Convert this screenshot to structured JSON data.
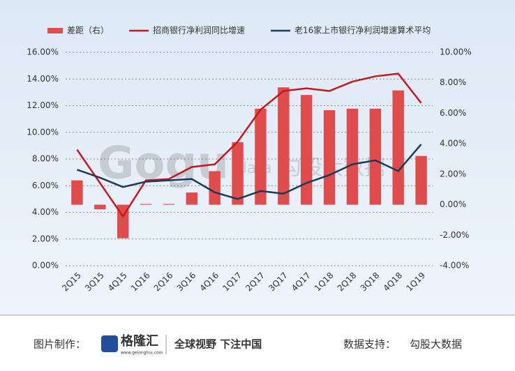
{
  "chart_data": {
    "type": "bar-line",
    "categories": [
      "2Q15",
      "3Q15",
      "4Q15",
      "1Q16",
      "2Q16",
      "3Q16",
      "4Q16",
      "1Q17",
      "2Q17",
      "3Q17",
      "4Q17",
      "1Q18",
      "2Q18",
      "3Q18",
      "4Q18",
      "1Q19"
    ],
    "series": [
      {
        "name": "差距（右）",
        "type": "bar",
        "axis": "y2",
        "color": "#e04b4b",
        "values": [
          1.6,
          -0.3,
          -2.2,
          0.05,
          0.05,
          0.8,
          2.2,
          4.1,
          6.3,
          7.7,
          7.2,
          6.2,
          6.3,
          6.3,
          7.5,
          3.2
        ]
      },
      {
        "name": "招商银行净利润同比增速",
        "type": "line",
        "color": "#c8161d",
        "values": [
          8.7,
          6.2,
          3.7,
          6.4,
          6.5,
          7.4,
          7.6,
          9.3,
          11.7,
          13.1,
          13.3,
          13.1,
          13.8,
          14.2,
          14.4,
          12.2
        ]
      },
      {
        "name": "老16家上市银行净利润增速算术平均",
        "type": "line",
        "color": "#1a3a5c",
        "values": [
          7.2,
          6.6,
          5.9,
          6.3,
          6.4,
          6.5,
          5.5,
          5.0,
          5.6,
          5.4,
          6.2,
          6.8,
          7.6,
          7.9,
          7.1,
          9.1
        ]
      }
    ],
    "ylim": [
      0,
      16
    ],
    "yticks": [
      {
        "value": 0,
        "label": "0.00%"
      },
      {
        "value": 2,
        "label": "2.00%"
      },
      {
        "value": 4,
        "label": "4.00%"
      },
      {
        "value": 6,
        "label": "6.00%"
      },
      {
        "value": 8,
        "label": "8.00%"
      },
      {
        "value": 10,
        "label": "10.00%"
      },
      {
        "value": 12,
        "label": "12.00%"
      },
      {
        "value": 14,
        "label": "14.00%"
      },
      {
        "value": 16,
        "label": "16.00%"
      }
    ],
    "y2lim": [
      -4,
      10
    ],
    "y2ticks": [
      {
        "value": -4,
        "label": "-4.00%"
      },
      {
        "value": -2,
        "label": "-2.00%"
      },
      {
        "value": 0,
        "label": "0.00%"
      },
      {
        "value": 2,
        "label": "2.00%"
      },
      {
        "value": 4,
        "label": "4.00%"
      },
      {
        "value": 6,
        "label": "6.00%"
      },
      {
        "value": 8,
        "label": "8.00%"
      },
      {
        "value": 10,
        "label": "10.00%"
      }
    ],
    "grid": true,
    "watermark": [
      "Gogu",
      "data",
      "勾股大数据"
    ]
  },
  "footer": {
    "made_by_label": "图片制作：",
    "logo": "格隆汇",
    "logo_url": "www.gelonghui.com",
    "slogan": "全球视野 下注中国",
    "data_label": "数据支持：",
    "data_source": "勾股大数据"
  }
}
